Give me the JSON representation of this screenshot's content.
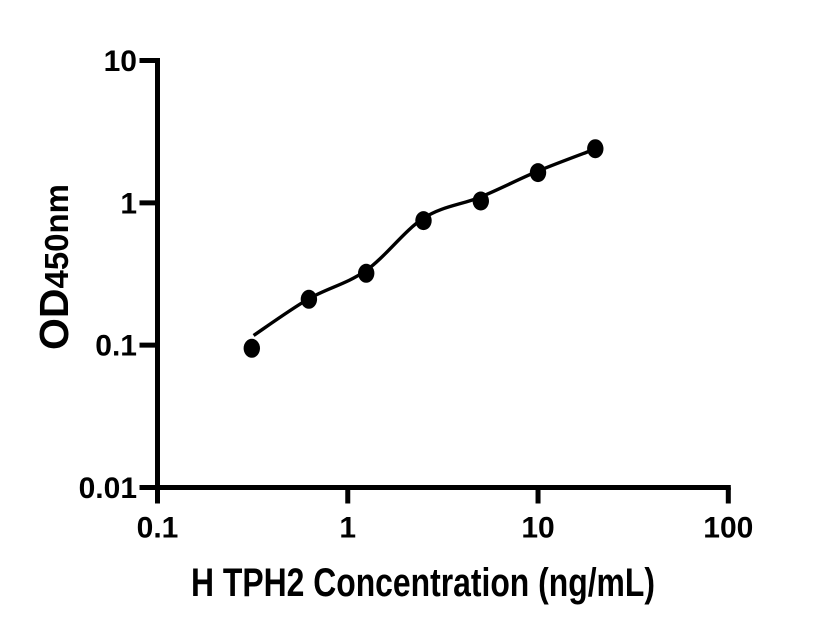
{
  "figure": {
    "background_color": "#ffffff",
    "ink_color": "#000000"
  },
  "chart_data": {
    "type": "scatter",
    "title": "",
    "xlabel": "H TPH2 Concentration (ng/mL)",
    "ylabel_main": "OD",
    "ylabel_sub": "450nm",
    "x_scale": "log",
    "y_scale": "log",
    "xlim": [
      0.1,
      100
    ],
    "ylim": [
      0.01,
      10
    ],
    "x_tick_values": [
      0.1,
      1,
      10,
      100
    ],
    "x_tick_labels": [
      "0.1",
      "1",
      "10",
      "100"
    ],
    "y_tick_values": [
      10,
      1,
      0.1,
      0.01
    ],
    "y_tick_labels": [
      "10",
      "1",
      "0.1",
      "0.01"
    ],
    "grid": false,
    "legend": "none",
    "marker": "filled-black-circle",
    "points": [
      {
        "x": 0.313,
        "od": 0.095
      },
      {
        "x": 0.625,
        "od": 0.21
      },
      {
        "x": 1.25,
        "od": 0.32
      },
      {
        "x": 2.5,
        "od": 0.75
      },
      {
        "x": 5,
        "od": 1.03
      },
      {
        "x": 10,
        "od": 1.63
      },
      {
        "x": 20,
        "od": 2.4
      }
    ],
    "fit_curve": [
      {
        "x": 0.32,
        "od": 0.117
      },
      {
        "x": 0.625,
        "od": 0.212
      },
      {
        "x": 1.25,
        "od": 0.335
      },
      {
        "x": 2.5,
        "od": 0.78
      },
      {
        "x": 5,
        "od": 1.1
      },
      {
        "x": 10,
        "od": 1.67
      },
      {
        "x": 20,
        "od": 2.39
      }
    ]
  }
}
